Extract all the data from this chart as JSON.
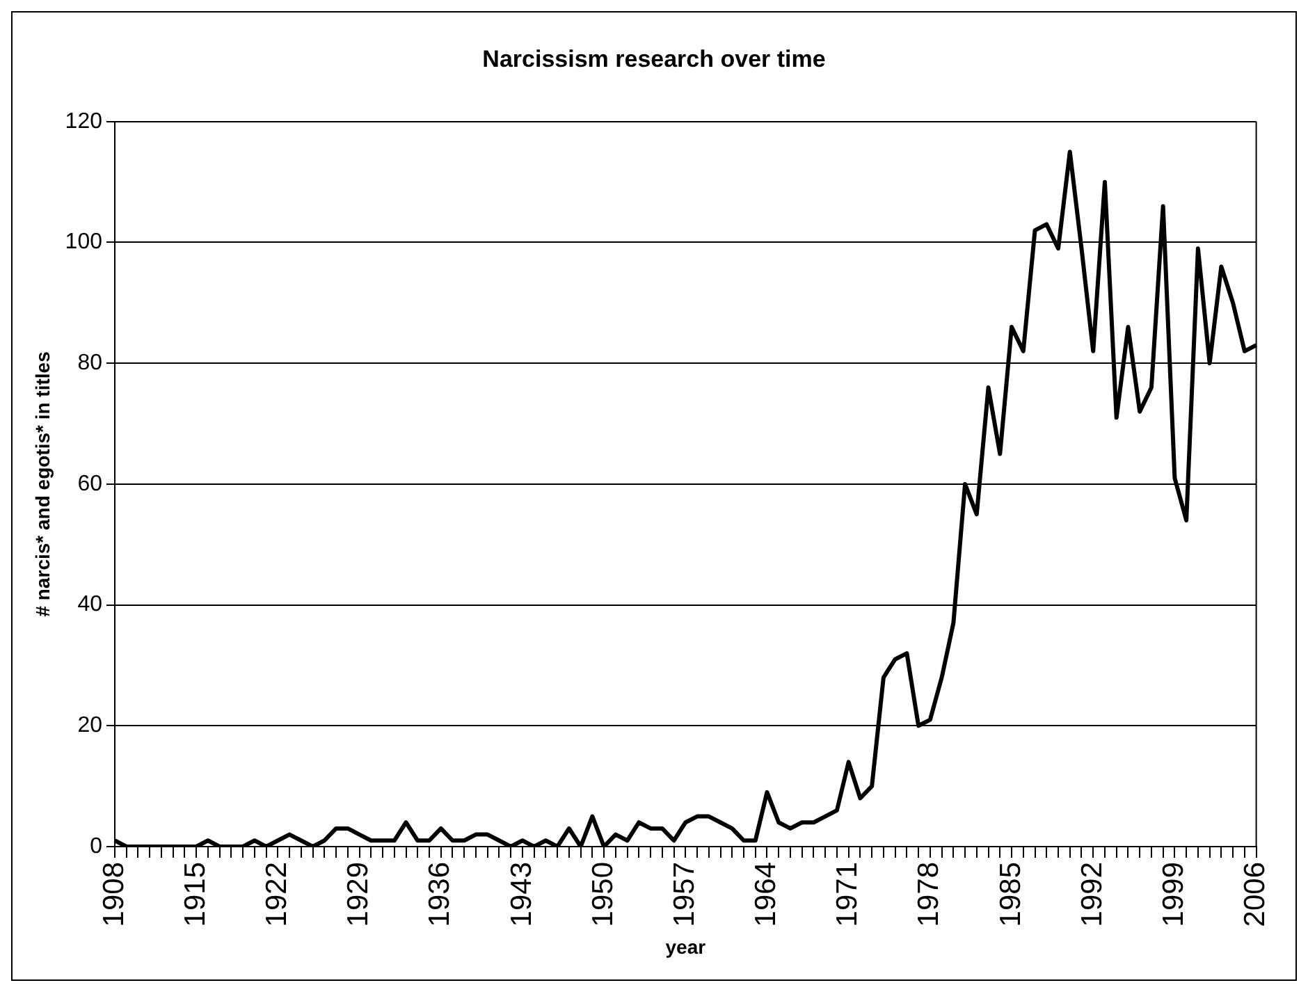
{
  "chart_data": {
    "type": "line",
    "title": "Narcissism research over time",
    "xlabel": "year",
    "ylabel": "# narcis* and egotis* in titles",
    "categories": [
      "1908",
      null,
      null,
      null,
      null,
      null,
      null,
      "1915",
      null,
      null,
      null,
      null,
      null,
      null,
      "1922",
      null,
      null,
      null,
      null,
      null,
      null,
      "1929",
      null,
      null,
      null,
      null,
      null,
      null,
      "1936",
      null,
      null,
      null,
      null,
      null,
      null,
      "1943",
      null,
      null,
      null,
      null,
      null,
      null,
      "1950",
      null,
      null,
      null,
      null,
      null,
      null,
      "1957",
      null,
      null,
      null,
      null,
      null,
      null,
      "1964",
      null,
      null,
      null,
      null,
      null,
      null,
      "1971",
      null,
      null,
      null,
      null,
      null,
      null,
      "1978",
      null,
      null,
      null,
      null,
      null,
      null,
      "1985",
      null,
      null,
      null,
      null,
      null,
      null,
      "1992",
      null,
      null,
      null,
      null,
      null,
      null,
      "1999",
      null,
      null,
      null,
      null,
      null,
      null,
      "2006"
    ],
    "series": [
      {
        "color": "#000000",
        "values": [
          1,
          0,
          0,
          0,
          0,
          0,
          0,
          0,
          1,
          0,
          0,
          0,
          1,
          0,
          1,
          2,
          1,
          0,
          1,
          3,
          3,
          2,
          1,
          1,
          1,
          4,
          1,
          1,
          3,
          1,
          1,
          2,
          2,
          1,
          0,
          1,
          0,
          1,
          0,
          3,
          0,
          5,
          0,
          2,
          1,
          4,
          3,
          3,
          1,
          4,
          5,
          5,
          4,
          3,
          1,
          1,
          9,
          4,
          3,
          4,
          4,
          5,
          6,
          14,
          8,
          10,
          28,
          31,
          32,
          20,
          21,
          28,
          37,
          60,
          55,
          76,
          65,
          86,
          82,
          102,
          103,
          99,
          115,
          99,
          82,
          110,
          71,
          86,
          72,
          76,
          106,
          61,
          54,
          99,
          80,
          96,
          90,
          82,
          83
        ]
      }
    ],
    "ylim": [
      0,
      120
    ],
    "yticks": [
      0,
      20,
      40,
      60,
      80,
      100,
      120
    ],
    "grid": "y",
    "legend": false
  }
}
